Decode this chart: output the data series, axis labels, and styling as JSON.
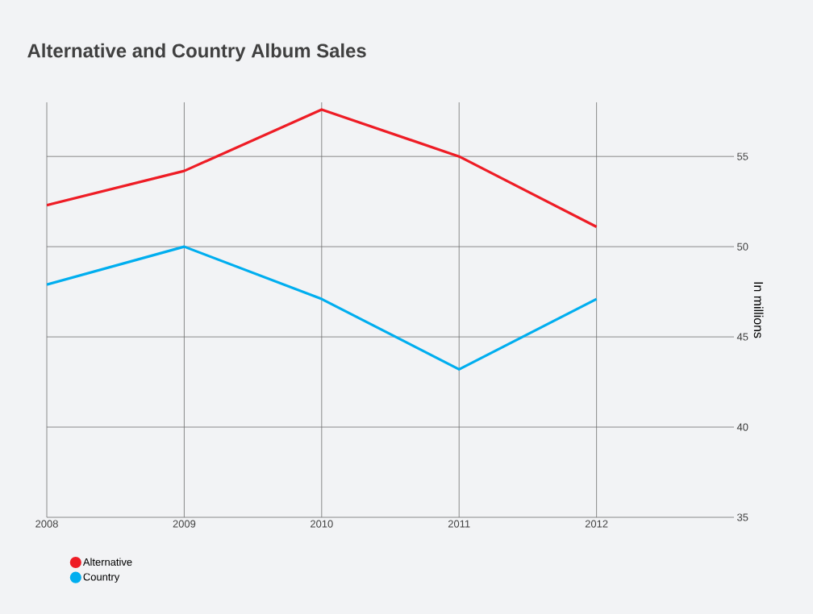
{
  "chart_data": {
    "type": "line",
    "title": "Alternative and Country Album Sales",
    "ylabel": "In millions",
    "x": [
      2008,
      2009,
      2010,
      2011,
      2012
    ],
    "series": [
      {
        "name": "Alternative",
        "color": "#ee1c25",
        "values": [
          52.3,
          54.2,
          57.6,
          55.0,
          51.1
        ]
      },
      {
        "name": "Country",
        "color": "#00aeef",
        "values": [
          47.9,
          50.0,
          47.1,
          43.2,
          47.1
        ]
      }
    ],
    "xlim": [
      2008,
      2013
    ],
    "xticks": [
      2008,
      2009,
      2010,
      2011,
      2012
    ],
    "ylim": [
      35,
      58
    ],
    "yticks": [
      35,
      40,
      45,
      50,
      55
    ],
    "grid": true,
    "legend": "bottom left",
    "marker": "none",
    "line_style": "solid"
  }
}
